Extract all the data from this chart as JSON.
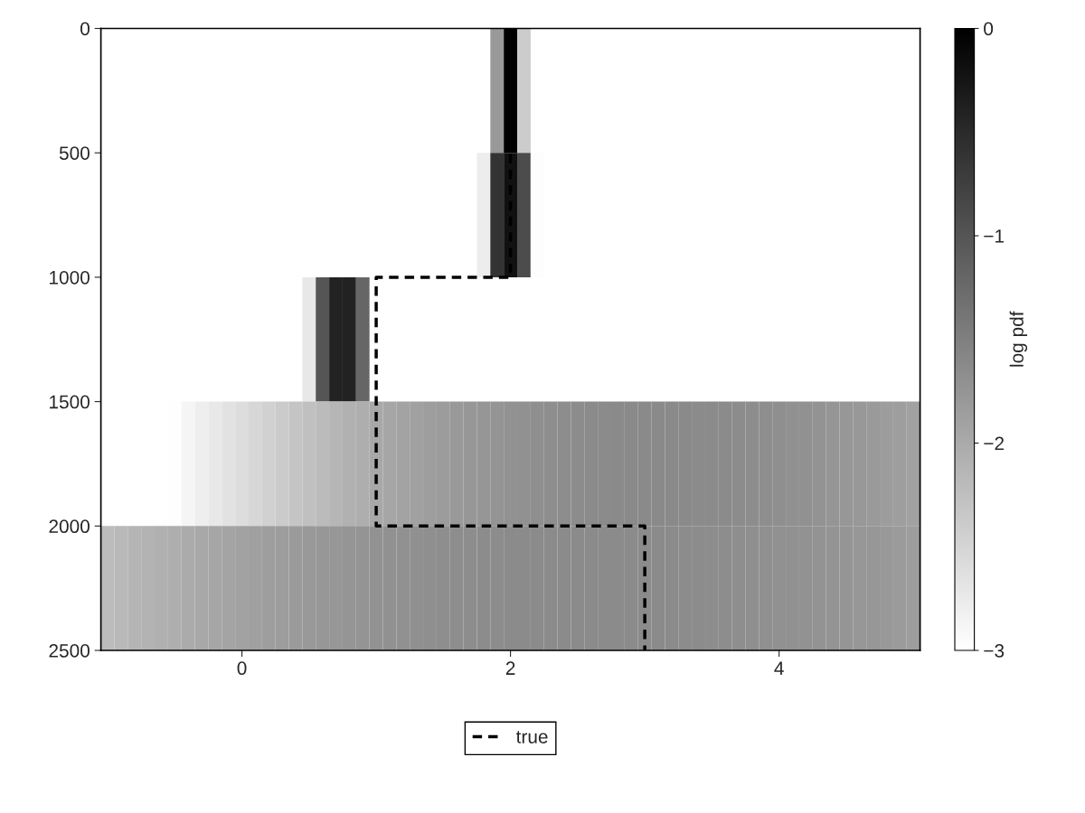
{
  "chart_data": {
    "type": "heatmap",
    "x": [
      -1.0,
      -0.9,
      -0.8,
      -0.7,
      -0.6,
      -0.5,
      -0.4,
      -0.3,
      -0.2,
      -0.1,
      0.0,
      0.1,
      0.2,
      0.3,
      0.4,
      0.5,
      0.6,
      0.7,
      0.8,
      0.9,
      1.0,
      1.1,
      1.2,
      1.3,
      1.4,
      1.5,
      1.6,
      1.7,
      1.8,
      1.9,
      2.0,
      2.1,
      2.2,
      2.3,
      2.4,
      2.5,
      2.6,
      2.7,
      2.8,
      2.9,
      3.0,
      3.1,
      3.2,
      3.3,
      3.4,
      3.5,
      3.6,
      3.7,
      3.8,
      3.9,
      4.0,
      4.1,
      4.2,
      4.3,
      4.4,
      4.5,
      4.6,
      4.7,
      4.8,
      4.9,
      5.0
    ],
    "y": [
      250,
      750,
      1250,
      1750,
      2250
    ],
    "cells": [
      [
        null,
        null,
        null,
        null,
        null,
        null,
        null,
        null,
        null,
        null,
        null,
        null,
        null,
        null,
        null,
        null,
        null,
        null,
        null,
        null,
        null,
        null,
        null,
        null,
        null,
        null,
        null,
        null,
        null,
        -1.8,
        0,
        -2.4,
        null,
        null,
        null,
        null,
        null,
        null,
        null,
        null,
        null,
        null,
        null,
        null,
        null,
        null,
        null,
        null,
        null,
        null,
        null,
        null,
        null,
        null,
        null,
        null,
        null,
        null,
        null,
        null,
        null
      ],
      [
        null,
        null,
        null,
        null,
        null,
        null,
        null,
        null,
        null,
        null,
        null,
        null,
        null,
        null,
        null,
        null,
        null,
        null,
        null,
        null,
        null,
        null,
        null,
        null,
        null,
        null,
        null,
        null,
        -2.78,
        -0.6,
        -0.2,
        -0.9,
        -2.97,
        null,
        null,
        null,
        null,
        null,
        null,
        null,
        null,
        null,
        null,
        null,
        null,
        null,
        null,
        null,
        null,
        null,
        null,
        null,
        null,
        null,
        null,
        null,
        null,
        null,
        null,
        null,
        null
      ],
      [
        null,
        null,
        null,
        null,
        null,
        null,
        null,
        null,
        null,
        null,
        null,
        null,
        null,
        null,
        null,
        -2.73,
        -1.0,
        -0.4,
        -0.4,
        -1.2,
        null,
        null,
        null,
        null,
        null,
        null,
        null,
        null,
        null,
        null,
        null,
        null,
        null,
        null,
        null,
        null,
        null,
        null,
        null,
        null,
        null,
        null,
        null,
        null,
        null,
        null,
        null,
        null,
        null,
        null,
        null,
        null,
        null,
        null,
        null,
        null,
        null,
        null,
        null,
        null,
        null
      ],
      [
        null,
        null,
        null,
        null,
        null,
        -2.98,
        -2.88,
        -2.8,
        -2.73,
        -2.66,
        -2.59,
        -2.52,
        -2.45,
        -2.38,
        -2.32,
        -2.26,
        -2.2,
        -2.14,
        -2.08,
        -2.04,
        -1.98,
        -1.95,
        -1.92,
        -1.89,
        -1.86,
        -1.83,
        -1.8,
        -1.78,
        -1.76,
        -1.74,
        -1.72,
        -1.7,
        -1.68,
        -1.67,
        -1.66,
        -1.65,
        -1.64,
        -1.63,
        -1.62,
        -1.62,
        -1.62,
        -1.62,
        -1.62,
        -1.62,
        -1.63,
        -1.63,
        -1.64,
        -1.65,
        -1.66,
        -1.67,
        -1.68,
        -1.7,
        -1.71,
        -1.73,
        -1.75,
        -1.77,
        -1.79,
        -1.81,
        -1.84,
        -1.86,
        -1.89
      ],
      [
        -2.21,
        -2.17,
        -2.13,
        -2.1,
        -2.07,
        -2.04,
        -2.01,
        -1.98,
        -1.95,
        -1.93,
        -1.9,
        -1.88,
        -1.86,
        -1.84,
        -1.82,
        -1.8,
        -1.78,
        -1.77,
        -1.75,
        -1.74,
        -1.72,
        -1.71,
        -1.7,
        -1.69,
        -1.68,
        -1.67,
        -1.66,
        -1.66,
        -1.65,
        -1.65,
        -1.64,
        -1.64,
        -1.64,
        -1.63,
        -1.63,
        -1.63,
        -1.63,
        -1.63,
        -1.63,
        -1.63,
        -1.64,
        -1.64,
        -1.64,
        -1.65,
        -1.65,
        -1.66,
        -1.66,
        -1.67,
        -1.68,
        -1.69,
        -1.7,
        -1.71,
        -1.72,
        -1.73,
        -1.74,
        -1.75,
        -1.77,
        -1.78,
        -1.8,
        -1.82,
        -1.84
      ]
    ],
    "clim": [
      -3,
      0
    ],
    "cticks": [
      {
        "value": -3,
        "label": "−3"
      },
      {
        "value": -2,
        "label": "−2"
      },
      {
        "value": -1,
        "label": "−1"
      },
      0
    ],
    "clabel": "log pdf",
    "xlim": [
      -1.05,
      5.05
    ],
    "xticks": [
      0,
      2,
      4
    ],
    "ylim": [
      2500,
      0
    ],
    "yticks": [
      0,
      500,
      1000,
      1500,
      2000,
      2500
    ],
    "series": [
      {
        "name": "true",
        "type": "line",
        "color": "#000000",
        "line_style": "dashed",
        "x": [
          2,
          2,
          1,
          1,
          3,
          3
        ],
        "values": [
          0,
          1000,
          1000,
          2000,
          2000,
          2500
        ]
      }
    ],
    "legend": "bottom"
  }
}
